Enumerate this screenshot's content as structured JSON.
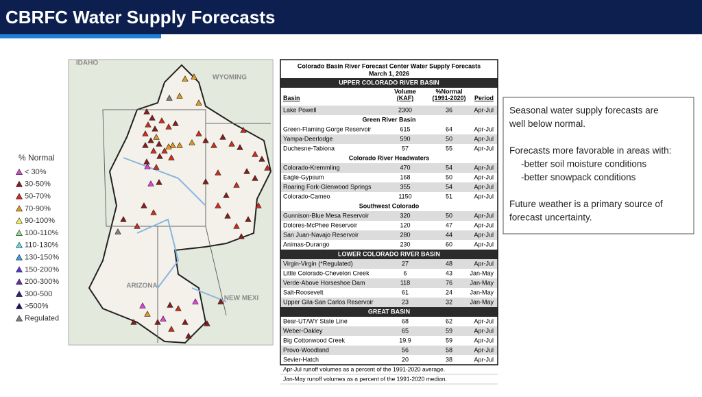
{
  "header": {
    "title": "CBRFC Water Supply Forecasts"
  },
  "legend": {
    "title": "% Normal",
    "items": [
      {
        "label": "< 30%",
        "color": "#e040e0"
      },
      {
        "label": "30-50%",
        "color": "#8b1a1a"
      },
      {
        "label": "50-70%",
        "color": "#d42a1a"
      },
      {
        "label": "70-90%",
        "color": "#e39a1c"
      },
      {
        "label": "90-100%",
        "color": "#f4f04a"
      },
      {
        "label": "100-110%",
        "color": "#8fe08f"
      },
      {
        "label": "110-130%",
        "color": "#5ee0e0"
      },
      {
        "label": "130-150%",
        "color": "#3aa0e0"
      },
      {
        "label": "150-200%",
        "color": "#5a3ad0"
      },
      {
        "label": "200-300%",
        "color": "#6a2ab0"
      },
      {
        "label": "300-500",
        "color": "#3a1a8a"
      },
      {
        "label": ">500%",
        "color": "#20106a"
      },
      {
        "label": "Regulated",
        "color": "#808080"
      }
    ]
  },
  "map": {
    "labels": [
      "IDAHO",
      "WYOMING",
      "ARIZONA",
      "NEW MEXI"
    ]
  },
  "table": {
    "title": [
      "Colorado Basin River Forecast Center Water Supply Forecasts",
      "March 1, 2026"
    ],
    "columns": [
      [
        "Basin"
      ],
      [
        "Volume",
        "(KAF)"
      ],
      [
        "%Normal",
        "(1991-2020)"
      ],
      [
        "Period"
      ]
    ],
    "basins": [
      {
        "name": "UPPER COLORADO RIVER BASIN",
        "groups": [
          {
            "rows": [
              [
                "Lake Powell",
                2300,
                36,
                "Apr-Jul"
              ]
            ]
          },
          {
            "name": "Green River Basin",
            "rows": [
              [
                "Green-Flaming Gorge Reservoir",
                615,
                64,
                "Apr-Jul"
              ],
              [
                "Yampa-Deerlodge",
                590,
                50,
                "Apr-Jul"
              ],
              [
                "Duchesne-Tabiona",
                57,
                55,
                "Apr-Jul"
              ]
            ]
          },
          {
            "name": "Colorado River Headwaters",
            "rows": [
              [
                "Colorado-Kremmling",
                470,
                54,
                "Apr-Jul"
              ],
              [
                "Eagle-Gypsum",
                168,
                50,
                "Apr-Jul"
              ],
              [
                "Roaring Fork-Glenwood Springs",
                355,
                54,
                "Apr-Jul"
              ],
              [
                "Colorado-Cameo",
                1150,
                51,
                "Apr-Jul"
              ]
            ]
          },
          {
            "name": "Southwest Colorado",
            "rows": [
              [
                "Gunnison-Blue Mesa Reservoir",
                320,
                50,
                "Apr-Jul"
              ],
              [
                "Dolores-McPhee Reservoir",
                120,
                47,
                "Apr-Jul"
              ],
              [
                "San Juan-Navajo Reservoir",
                280,
                44,
                "Apr-Jul"
              ],
              [
                "Animas-Durango",
                230,
                60,
                "Apr-Jul"
              ]
            ]
          }
        ]
      },
      {
        "name": "LOWER COLORADO RIVER BASIN",
        "groups": [
          {
            "rows": [
              [
                "Virgin-Virgin (*Regulated)",
                27,
                48,
                "Apr-Jul"
              ],
              [
                "Little Colorado-Chevelon Creek",
                6,
                43,
                "Jan-May"
              ],
              [
                "Verde-Above Horseshoe Dam",
                118,
                76,
                "Jan-May"
              ],
              [
                "Salt-Roosevelt",
                61,
                24,
                "Jan-May"
              ],
              [
                "Upper Gila-San Carlos Reservoir",
                23,
                32,
                "Jan-May"
              ]
            ]
          }
        ]
      },
      {
        "name": "GREAT BASIN",
        "groups": [
          {
            "rows": [
              [
                "Bear-UT/WY State Line",
                68,
                62,
                "Apr-Jul"
              ],
              [
                "Weber-Oakley",
                65,
                59,
                "Apr-Jul"
              ],
              [
                "Big Cottonwood Creek",
                19.9,
                59,
                "Apr-Jul"
              ],
              [
                "Provo-Woodland",
                56,
                58,
                "Apr-Jul"
              ],
              [
                "Sevier-Hatch",
                20,
                38,
                "Apr-Jul"
              ]
            ]
          }
        ]
      }
    ],
    "footnotes": [
      "Apr-Jul runoff volumes as a percent of the 1991-2020 average.",
      "Jan-May runoff volumes as a percent of the 1991-2020 median."
    ]
  },
  "textbox": {
    "paragraphs": [
      [
        "Seasonal water supply forecasts are",
        "well below normal."
      ],
      [
        "Forecasts more favorable in areas with:",
        "-better soil moisture conditions",
        "-better snowpack conditions"
      ],
      [
        "Future weather is a primary source of",
        "forecast uncertainty."
      ]
    ]
  }
}
